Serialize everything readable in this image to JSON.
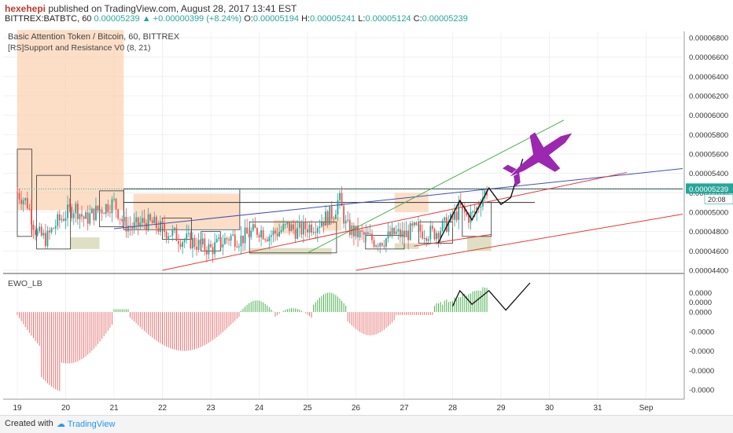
{
  "header": {
    "author": "hexehepi",
    "published": "published on TradingView.com, August 28, 2017 13:41 EST",
    "symbol": "BITTREX:BATBTC, 60",
    "last": "0.00005239",
    "change": "+0.00000399 (+8.24%)",
    "open_label": "O:",
    "open": "0.00005194",
    "high_label": "H:",
    "high": "0.00005241",
    "low_label": "L:",
    "low": "0.00005124",
    "close_label": "C:",
    "close": "0.00005239"
  },
  "footer": {
    "created_with": "Created with",
    "brand": "TradingView"
  },
  "colors": {
    "up": "#26a69a",
    "down": "#ef5350",
    "ewo_up": "#4caf50",
    "ewo_down": "#e57373",
    "jet": "#9c27b0",
    "zone": "#fbd3b4",
    "support_zone": "#dcdcbf"
  },
  "chart_data": [
    {
      "type": "line",
      "title": "Basic Attention Token / Bitcoin, 60, BITTREX",
      "subtitle": "[RS]Support and Resistance V0 (8, 21)",
      "x_ticks": [
        "19",
        "20",
        "21",
        "22",
        "23",
        "24",
        "25",
        "26",
        "27",
        "28",
        "29",
        "30",
        "31",
        "Sep"
      ],
      "ylim": [
        4.4e-05,
        6.8e-05
      ],
      "y_ticks": [
        "0.00006800",
        "0.00006600",
        "0.00006400",
        "0.00006200",
        "0.00006000",
        "0.00005800",
        "0.00005600",
        "0.00005400",
        "0.00005200",
        "0.00005000",
        "0.00004800",
        "0.00004600",
        "0.00004400"
      ],
      "last_price_label": "0.00005239",
      "countdown_label": "20:08",
      "series": [
        {
          "values": [
            [
              19.0,
              5.2e-05
            ],
            [
              19.2,
              5.1e-05
            ],
            [
              19.4,
              4.78e-05
            ],
            [
              19.6,
              4.72e-05
            ],
            [
              19.8,
              4.88e-05
            ],
            [
              20.0,
              4.98e-05
            ],
            [
              20.2,
              5.05e-05
            ],
            [
              20.4,
              4.92e-05
            ],
            [
              20.6,
              5e-05
            ],
            [
              20.8,
              5.05e-05
            ],
            [
              21.0,
              5.1e-05
            ],
            [
              21.2,
              4.88e-05
            ],
            [
              21.4,
              4.84e-05
            ],
            [
              21.6,
              4.9e-05
            ],
            [
              21.8,
              4.88e-05
            ],
            [
              22.0,
              4.82e-05
            ],
            [
              22.2,
              4.78e-05
            ],
            [
              22.4,
              4.72e-05
            ],
            [
              22.6,
              4.7e-05
            ],
            [
              22.8,
              4.65e-05
            ],
            [
              23.0,
              4.62e-05
            ],
            [
              23.2,
              4.68e-05
            ],
            [
              23.4,
              4.75e-05
            ],
            [
              23.6,
              4.72e-05
            ],
            [
              23.8,
              4.78e-05
            ],
            [
              24.0,
              4.82e-05
            ],
            [
              24.2,
              4.76e-05
            ],
            [
              24.4,
              4.8e-05
            ],
            [
              24.6,
              4.85e-05
            ],
            [
              24.8,
              4.8e-05
            ],
            [
              25.0,
              4.85e-05
            ],
            [
              25.2,
              4.88e-05
            ],
            [
              25.4,
              4.95e-05
            ],
            [
              25.55,
              5e-05
            ],
            [
              25.65,
              5.15e-05
            ],
            [
              25.8,
              4.85e-05
            ],
            [
              26.0,
              4.78e-05
            ],
            [
              26.2,
              4.75e-05
            ],
            [
              26.4,
              4.7e-05
            ],
            [
              26.6,
              4.72e-05
            ],
            [
              26.8,
              4.78e-05
            ],
            [
              27.0,
              4.76e-05
            ],
            [
              27.2,
              4.82e-05
            ],
            [
              27.4,
              4.8e-05
            ],
            [
              27.6,
              4.78e-05
            ],
            [
              27.8,
              4.85e-05
            ],
            [
              28.0,
              4.92e-05
            ],
            [
              28.15,
              5.05e-05
            ],
            [
              28.3,
              4.95e-05
            ],
            [
              28.45,
              4.98e-05
            ],
            [
              28.6,
              5.15e-05
            ],
            [
              28.72,
              5.24e-05
            ]
          ]
        }
      ]
    },
    {
      "type": "bar",
      "title": "EWO_LB",
      "ylim": [
        -4e-05,
        1.5e-05
      ],
      "y_ticks": [
        "0.0000",
        "0.0000",
        "0.0000",
        "-0.0000",
        "-0.0000",
        "-0.0000",
        "-0.0000"
      ]
    }
  ]
}
